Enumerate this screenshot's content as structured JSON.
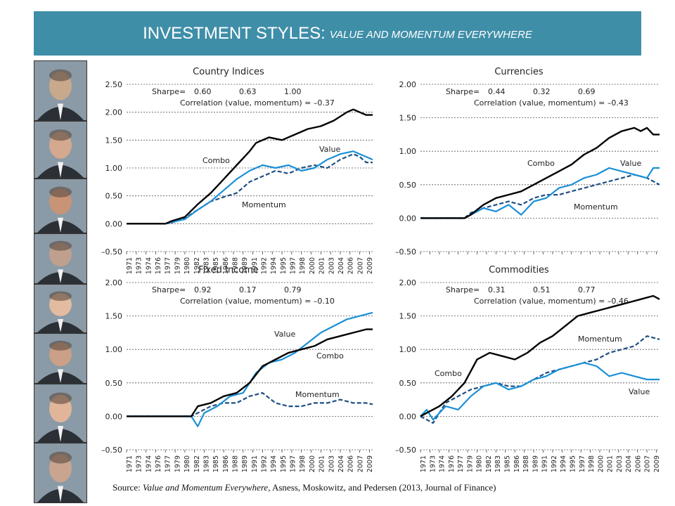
{
  "header": {
    "title_main": "INVESTMENT STYLES: ",
    "title_sub": "VALUE AND MOMENTUM EVERYWHERE"
  },
  "portraits": [
    {
      "icon": "portrait-icon",
      "tone": "#c9a98c"
    },
    {
      "icon": "portrait-icon",
      "tone": "#d4a98f"
    },
    {
      "icon": "portrait-icon",
      "tone": "#c89478"
    },
    {
      "icon": "portrait-icon",
      "tone": "#bfa08e"
    },
    {
      "icon": "portrait-icon",
      "tone": "#e2bba0"
    },
    {
      "icon": "portrait-icon",
      "tone": "#cba086"
    },
    {
      "icon": "portrait-icon",
      "tone": "#e0b59a"
    },
    {
      "icon": "portrait-icon",
      "tone": "#c9a58f"
    }
  ],
  "colors": {
    "banner": "#3f8ea8",
    "combo": "#000000",
    "value": "#1a8fd6",
    "momentum": "#1f4f82"
  },
  "source": {
    "prefix": "Source: ",
    "italic": "Value and Momentum Everywhere",
    "suffix": ", Asness, Moskowitz, and Pedersen (2013, Journal of Finance)"
  },
  "chart_data": [
    {
      "type": "line",
      "title": "Country Indices",
      "sharpe_label": "Sharpe=",
      "sharpe_values": [
        "0.60",
        "0.63",
        "1.00"
      ],
      "correlation": "Correlation (value, momentum) = –0.37",
      "ylim": [
        -0.5,
        2.5
      ],
      "yticks": [
        "2.50",
        "2.00",
        "1.50",
        "1.00",
        "0.50",
        "0.00",
        "–0.50"
      ],
      "xticks": [
        "1971",
        "1973",
        "1974",
        "1976",
        "1977",
        "1979",
        "1980",
        "1982",
        "1983",
        "1985",
        "1986",
        "1988",
        "1989",
        "1991",
        "1992",
        "1994",
        "1995",
        "1997",
        "1998",
        "2000",
        "2001",
        "2003",
        "2004",
        "2006",
        "2007",
        "2009"
      ],
      "labels": {
        "combo": "Combo",
        "value": "Value",
        "momentum": "Momentum"
      },
      "series": [
        {
          "name": "Combo",
          "x": [
            1971,
            1975,
            1977,
            1978,
            1980,
            1982,
            1984,
            1986,
            1988,
            1990,
            1991,
            1993,
            1995,
            1997,
            1999,
            2001,
            2003,
            2005,
            2006,
            2007,
            2008,
            2009
          ],
          "values": [
            0,
            0,
            0,
            0.05,
            0.12,
            0.35,
            0.55,
            0.8,
            1.05,
            1.3,
            1.45,
            1.55,
            1.5,
            1.6,
            1.7,
            1.75,
            1.85,
            2.0,
            2.05,
            2.0,
            1.95,
            1.95
          ]
        },
        {
          "name": "Value",
          "x": [
            1971,
            1975,
            1977,
            1978,
            1980,
            1982,
            1984,
            1986,
            1988,
            1990,
            1992,
            1994,
            1996,
            1998,
            2000,
            2002,
            2004,
            2006,
            2007,
            2008,
            2009
          ],
          "values": [
            0,
            0,
            0,
            0.03,
            0.08,
            0.25,
            0.4,
            0.6,
            0.8,
            0.95,
            1.05,
            1.0,
            1.05,
            0.95,
            1.0,
            1.15,
            1.25,
            1.3,
            1.25,
            1.2,
            1.15
          ]
        },
        {
          "name": "Momentum",
          "x": [
            1971,
            1975,
            1977,
            1978,
            1980,
            1982,
            1984,
            1986,
            1988,
            1990,
            1992,
            1994,
            1996,
            1998,
            2000,
            2002,
            2004,
            2006,
            2007,
            2008,
            2009
          ],
          "values": [
            0,
            0,
            0,
            0.02,
            0.1,
            0.25,
            0.4,
            0.48,
            0.55,
            0.75,
            0.85,
            0.95,
            0.9,
            1.0,
            1.05,
            1.0,
            1.15,
            1.25,
            1.2,
            1.1,
            1.1
          ]
        }
      ]
    },
    {
      "type": "line",
      "title": "Currencies",
      "sharpe_label": "Sharpe=",
      "sharpe_values": [
        "0.44",
        "0.32",
        "0.69"
      ],
      "correlation": "Correlation (value, momentum) = –0.43",
      "ylim": [
        -0.5,
        2.0
      ],
      "yticks": [
        "2.00",
        "1.50",
        "1.00",
        "0.50",
        "0.00",
        "–0.50"
      ],
      "xticks": [],
      "labels": {
        "combo": "Combo",
        "value": "Value",
        "momentum": "Momentum"
      },
      "series": [
        {
          "name": "Combo",
          "x": [
            1971,
            1978,
            1979,
            1981,
            1983,
            1985,
            1987,
            1989,
            1991,
            1993,
            1995,
            1997,
            1999,
            2001,
            2003,
            2005,
            2006,
            2007,
            2008,
            2009
          ],
          "values": [
            0,
            0,
            0.05,
            0.2,
            0.3,
            0.35,
            0.4,
            0.5,
            0.6,
            0.7,
            0.8,
            0.95,
            1.05,
            1.2,
            1.3,
            1.35,
            1.3,
            1.35,
            1.25,
            1.25
          ]
        },
        {
          "name": "Value",
          "x": [
            1971,
            1978,
            1979,
            1981,
            1983,
            1985,
            1987,
            1989,
            1991,
            1993,
            1995,
            1997,
            1999,
            2001,
            2003,
            2005,
            2007,
            2008,
            2009
          ],
          "values": [
            0,
            0,
            0.05,
            0.15,
            0.1,
            0.2,
            0.05,
            0.25,
            0.3,
            0.45,
            0.5,
            0.6,
            0.65,
            0.75,
            0.7,
            0.65,
            0.6,
            0.75,
            0.75
          ]
        },
        {
          "name": "Momentum",
          "x": [
            1971,
            1978,
            1979,
            1981,
            1983,
            1985,
            1987,
            1989,
            1991,
            1993,
            1995,
            1997,
            1999,
            2001,
            2003,
            2005,
            2007,
            2008,
            2009
          ],
          "values": [
            0,
            0,
            0.08,
            0.15,
            0.2,
            0.25,
            0.2,
            0.3,
            0.35,
            0.35,
            0.4,
            0.45,
            0.5,
            0.55,
            0.6,
            0.65,
            0.6,
            0.55,
            0.5
          ]
        }
      ]
    },
    {
      "type": "line",
      "title": "Fixed Income",
      "sharpe_label": "Sharpe=",
      "sharpe_values": [
        "0.92",
        "0.17",
        "0.79"
      ],
      "correlation": "Correlation (value, momentum) = –0.10",
      "ylim": [
        -0.5,
        2.0
      ],
      "yticks": [
        "2.00",
        "1.50",
        "1.00",
        "0.50",
        "0.00",
        "–0.50"
      ],
      "xticks": [
        "1971",
        "1973",
        "1974",
        "1976",
        "1977",
        "1979",
        "1980",
        "1982",
        "1983",
        "1985",
        "1986",
        "1988",
        "1989",
        "1991",
        "1992",
        "1994",
        "1995",
        "1997",
        "1998",
        "2000",
        "2001",
        "2003",
        "2004",
        "2006",
        "2007",
        "2009"
      ],
      "labels": {
        "combo": "Combo",
        "value": "Value",
        "momentum": "Momentum"
      },
      "series": [
        {
          "name": "Combo",
          "x": [
            1971,
            1981,
            1982,
            1984,
            1986,
            1988,
            1990,
            1992,
            1994,
            1996,
            1998,
            2000,
            2002,
            2004,
            2006,
            2008,
            2009
          ],
          "values": [
            0,
            0,
            0.15,
            0.2,
            0.3,
            0.35,
            0.5,
            0.75,
            0.85,
            0.95,
            1.0,
            1.05,
            1.15,
            1.2,
            1.25,
            1.3,
            1.3
          ]
        },
        {
          "name": "Value",
          "x": [
            1971,
            1981,
            1982,
            1983,
            1985,
            1987,
            1989,
            1991,
            1993,
            1995,
            1997,
            1999,
            2001,
            2003,
            2005,
            2007,
            2009
          ],
          "values": [
            0,
            0,
            -0.15,
            0.05,
            0.15,
            0.3,
            0.35,
            0.65,
            0.8,
            0.85,
            0.95,
            1.1,
            1.25,
            1.35,
            1.45,
            1.5,
            1.55
          ]
        },
        {
          "name": "Momentum",
          "x": [
            1971,
            1981,
            1982,
            1984,
            1986,
            1988,
            1990,
            1992,
            1994,
            1996,
            1998,
            2000,
            2002,
            2004,
            2006,
            2008,
            2009
          ],
          "values": [
            0,
            0,
            0.05,
            0.15,
            0.2,
            0.2,
            0.3,
            0.35,
            0.2,
            0.15,
            0.15,
            0.2,
            0.2,
            0.25,
            0.2,
            0.2,
            0.18
          ]
        }
      ]
    },
    {
      "type": "line",
      "title": "Commodities",
      "sharpe_label": "Sharpe=",
      "sharpe_values": [
        "0.31",
        "0.51",
        "0.77"
      ],
      "correlation": "Correlation (value, momentum) = –0.46",
      "ylim": [
        -0.5,
        2.0
      ],
      "yticks": [
        "2.00",
        "1.50",
        "1.00",
        "0.50",
        "0.00",
        "–0.50"
      ],
      "xticks": [
        "1971",
        "1973",
        "1974",
        "1976",
        "1977",
        "1979",
        "1980",
        "1982",
        "1983",
        "1985",
        "1986",
        "1988",
        "1989",
        "1991",
        "1992",
        "1994",
        "1995",
        "1997",
        "1998",
        "2000",
        "2001",
        "2003",
        "2004",
        "2006",
        "2007",
        "2009"
      ],
      "labels": {
        "combo": "Combo",
        "value": "Value",
        "momentum": "Momentum"
      },
      "series": [
        {
          "name": "Combo",
          "x": [
            1971,
            1972,
            1974,
            1976,
            1978,
            1980,
            1982,
            1984,
            1986,
            1988,
            1990,
            1992,
            1994,
            1996,
            1998,
            2000,
            2002,
            2004,
            2006,
            2008,
            2009
          ],
          "values": [
            0,
            0.05,
            0.15,
            0.3,
            0.5,
            0.85,
            0.95,
            0.9,
            0.85,
            0.95,
            1.1,
            1.2,
            1.35,
            1.5,
            1.55,
            1.6,
            1.65,
            1.7,
            1.75,
            1.8,
            1.75
          ]
        },
        {
          "name": "Value",
          "x": [
            1971,
            1972,
            1973,
            1975,
            1977,
            1979,
            1981,
            1983,
            1985,
            1987,
            1989,
            1991,
            1993,
            1995,
            1997,
            1999,
            2001,
            2003,
            2005,
            2007,
            2009
          ],
          "values": [
            0,
            0.1,
            -0.05,
            0.15,
            0.1,
            0.3,
            0.45,
            0.5,
            0.4,
            0.45,
            0.55,
            0.6,
            0.7,
            0.75,
            0.8,
            0.75,
            0.6,
            0.65,
            0.6,
            0.55,
            0.55
          ]
        },
        {
          "name": "Momentum",
          "x": [
            1971,
            1972,
            1973,
            1975,
            1977,
            1979,
            1981,
            1983,
            1985,
            1987,
            1989,
            1991,
            1993,
            1995,
            1997,
            1999,
            2001,
            2003,
            2005,
            2007,
            2009
          ],
          "values": [
            0,
            -0.05,
            -0.1,
            0.2,
            0.3,
            0.4,
            0.45,
            0.5,
            0.45,
            0.45,
            0.55,
            0.65,
            0.7,
            0.75,
            0.8,
            0.85,
            0.95,
            1.0,
            1.05,
            1.2,
            1.15
          ]
        }
      ]
    }
  ]
}
